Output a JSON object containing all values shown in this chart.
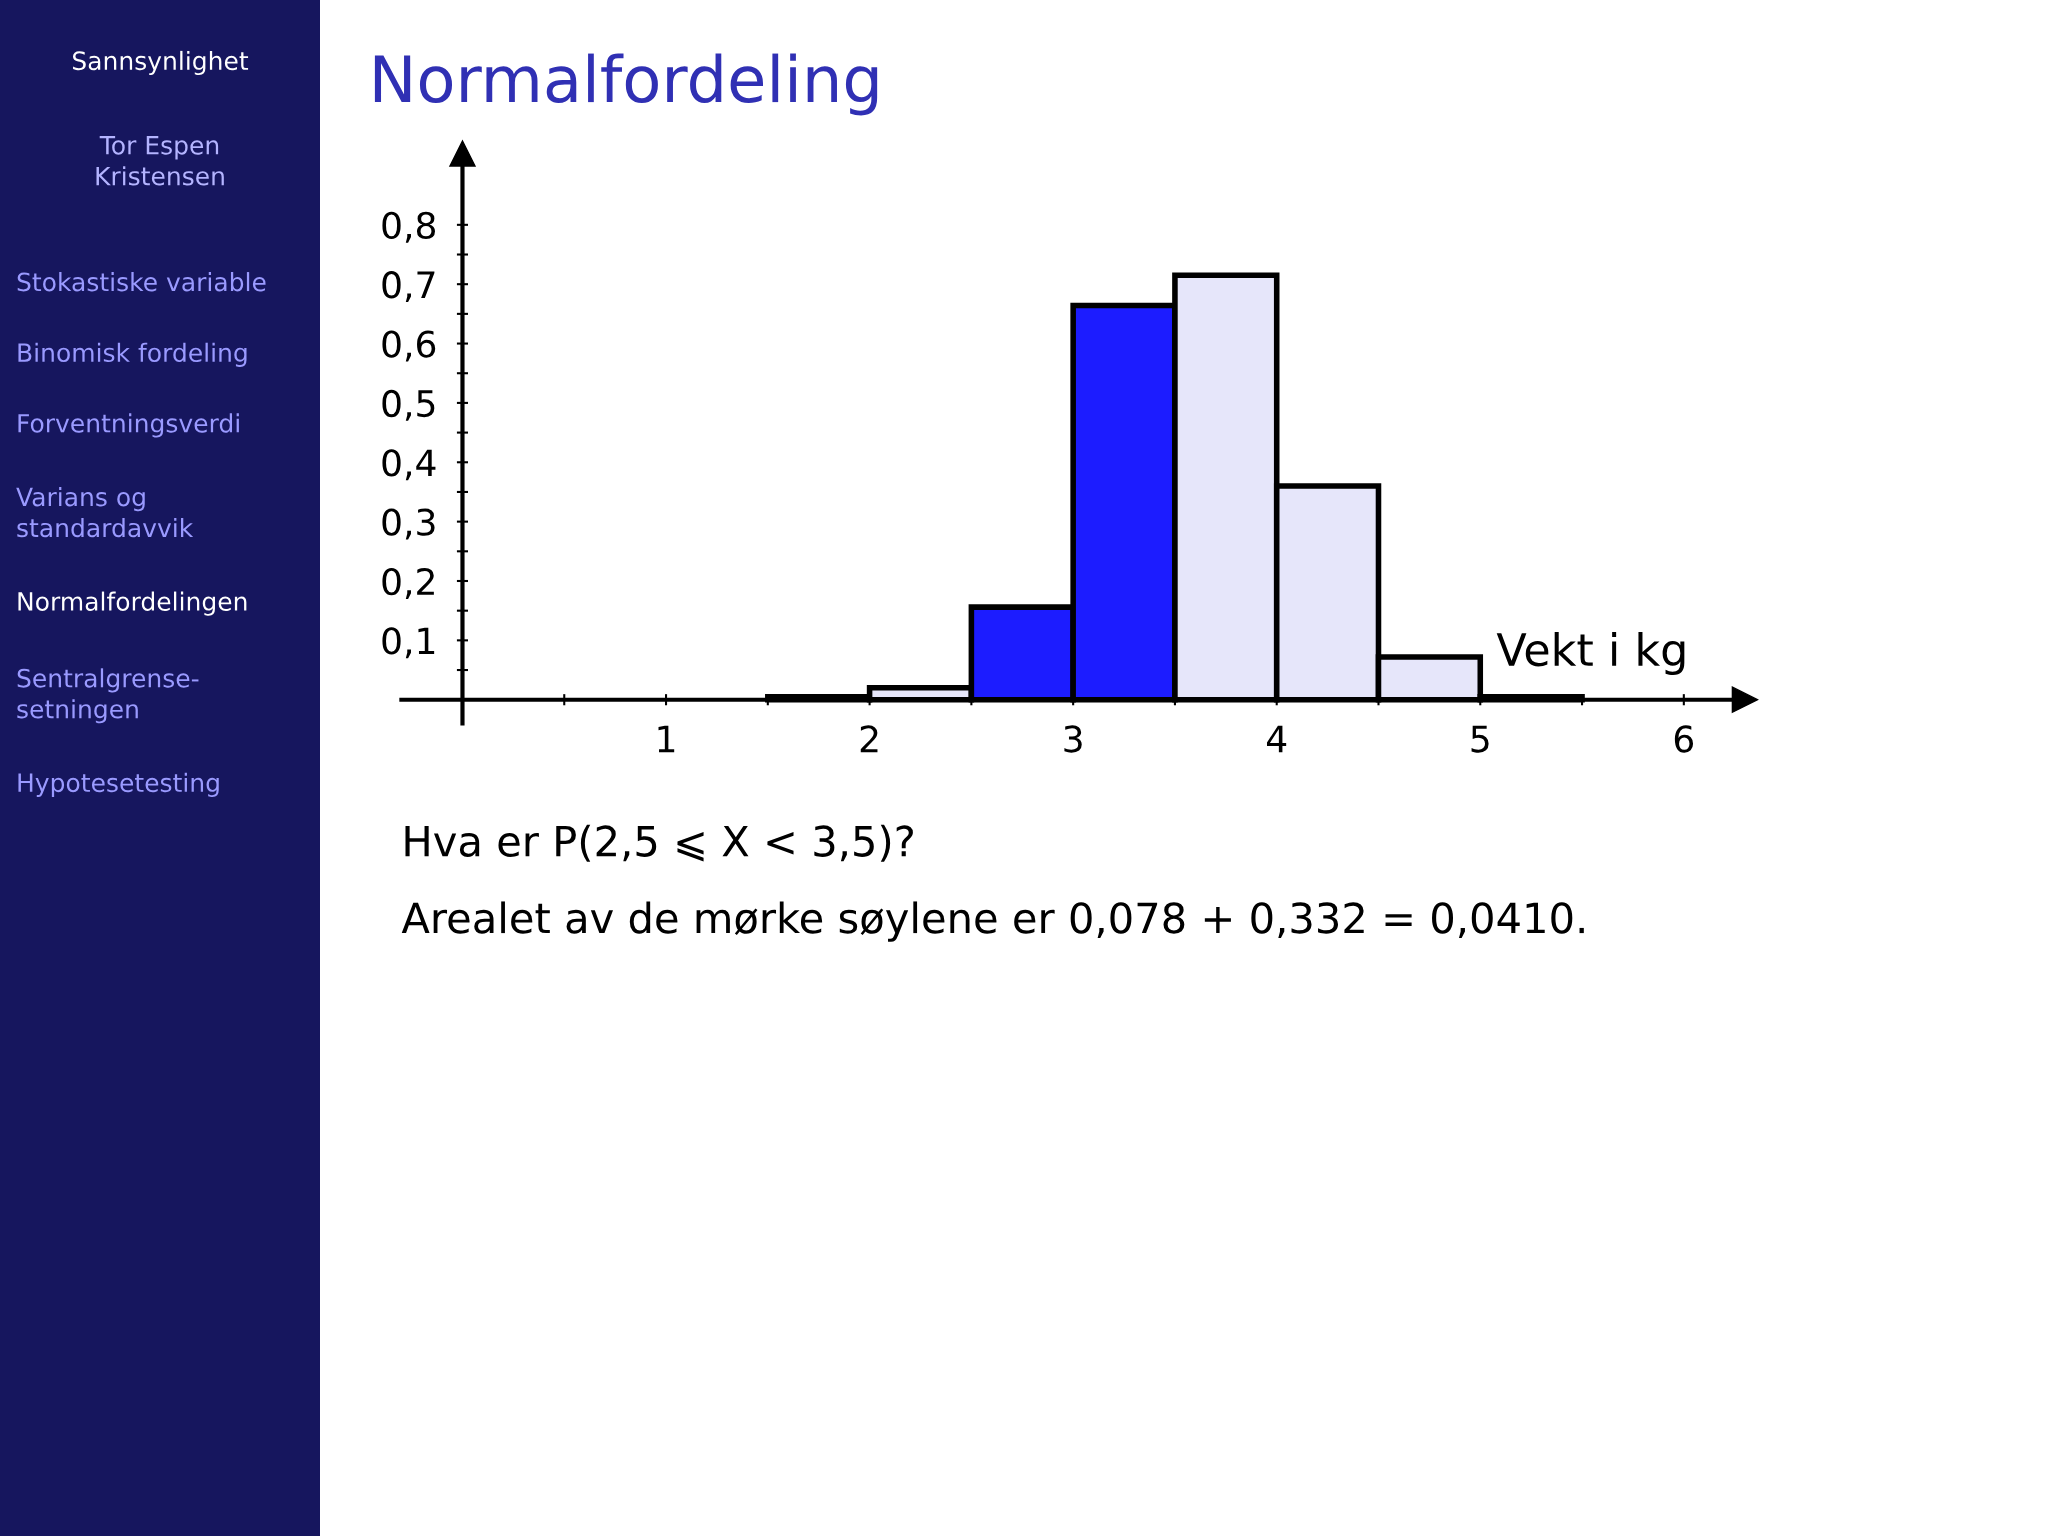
{
  "chart_data": {
    "type": "histogram",
    "title": "Normalfordeling",
    "xlabel": "Vekt i kg",
    "bins": [
      1.5,
      2,
      2.5,
      3,
      3.5,
      4,
      4.5,
      5,
      5.5
    ],
    "values": [
      0.005,
      0.02,
      0.156,
      0.664,
      0.715,
      0.36,
      0.072,
      0.005
    ],
    "colors": [
      "#e6e6fa",
      "#e6e6fa",
      "#1c1cff",
      "#1c1cff",
      "#e6e6fa",
      "#e6e6fa",
      "#e6e6fa",
      "#e6e6fa"
    ],
    "xlim": [
      -0.3,
      6.3
    ],
    "ylim": [
      -0.04,
      0.92
    ],
    "xticks": [
      1,
      2,
      3,
      4,
      5,
      6,
      {
        "value": 0.5,
        "label": null
      },
      {
        "value": 1.5,
        "label": null
      },
      {
        "value": 2.5,
        "label": null
      },
      {
        "value": 3.5,
        "label": null
      },
      {
        "value": 4.5,
        "label": null
      },
      {
        "value": 5.5,
        "label": null
      }
    ],
    "yticks": [
      {
        "value": 0.1,
        "label": "0,1"
      },
      {
        "value": 0.2,
        "label": "0,2"
      },
      {
        "value": 0.3,
        "label": "0,3"
      },
      {
        "value": 0.4,
        "label": "0,4"
      },
      {
        "value": 0.5,
        "label": "0,5"
      },
      {
        "value": 0.6,
        "label": "0,6"
      },
      {
        "value": 0.7,
        "label": "0,7"
      },
      {
        "value": 0.8,
        "label": "0,8"
      },
      {
        "value": 0.05,
        "label": null
      },
      {
        "value": 0.15,
        "label": null
      },
      {
        "value": 0.25,
        "label": null
      },
      {
        "value": 0.35,
        "label": null
      },
      {
        "value": 0.45,
        "label": null
      },
      {
        "value": 0.55,
        "label": null
      },
      {
        "value": 0.65,
        "label": null
      },
      {
        "value": 0.75,
        "label": null
      }
    ],
    "grid": false,
    "annotations": [
      "Sannsynlighet",
      "Tor Espen\nKristensen",
      "Stokastiske variable",
      "Binomisk fordeling",
      "Forventningsverdi",
      "Varians og\nstandardavvik",
      "Normalfordelingen",
      "Sentralgrense-\nsetningen",
      "Hypotesetesting",
      "Hva er P(2,5 ⩽ X < 3,5)?",
      "Arealet av de mørke søylene er 0,078 + 0,332 = 0,0410."
    ]
  }
}
